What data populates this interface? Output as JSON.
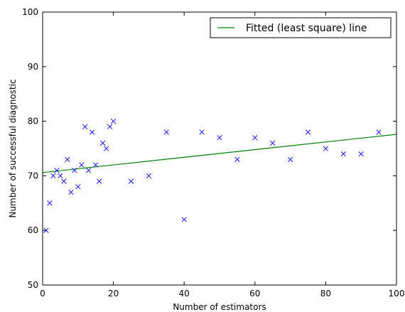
{
  "chart_data": {
    "type": "scatter",
    "xlabel": "Number of estimators",
    "ylabel": "Number of successful diagnostic",
    "xlim": [
      0,
      100
    ],
    "ylim": [
      50,
      100
    ],
    "xticks": [
      "0",
      "20",
      "40",
      "60",
      "80",
      "100"
    ],
    "yticks": [
      "50",
      "60",
      "70",
      "80",
      "90",
      "100"
    ],
    "grid": false,
    "legend_position": "top-right",
    "series": [
      {
        "kind": "points",
        "marker": "x",
        "color": "#0000ff",
        "x": [
          1,
          2,
          3,
          4,
          5,
          6,
          7,
          8,
          9,
          10,
          11,
          12,
          13,
          14,
          15,
          16,
          17,
          18,
          19,
          20,
          25,
          30,
          35,
          40,
          45,
          50,
          55,
          60,
          65,
          70,
          75,
          80,
          85,
          90,
          95
        ],
        "y": [
          60,
          65,
          70,
          71,
          70,
          69,
          73,
          67,
          71,
          68,
          72,
          79,
          71,
          78,
          72,
          69,
          76,
          75,
          79,
          80,
          69,
          70,
          78,
          62,
          78,
          77,
          73,
          77,
          76,
          73,
          78,
          75,
          74,
          74,
          78
        ]
      },
      {
        "kind": "line",
        "name": "Fitted (least square) line",
        "color": "#008000",
        "x": [
          0,
          100
        ],
        "y": [
          70.6,
          77.6
        ]
      }
    ]
  }
}
